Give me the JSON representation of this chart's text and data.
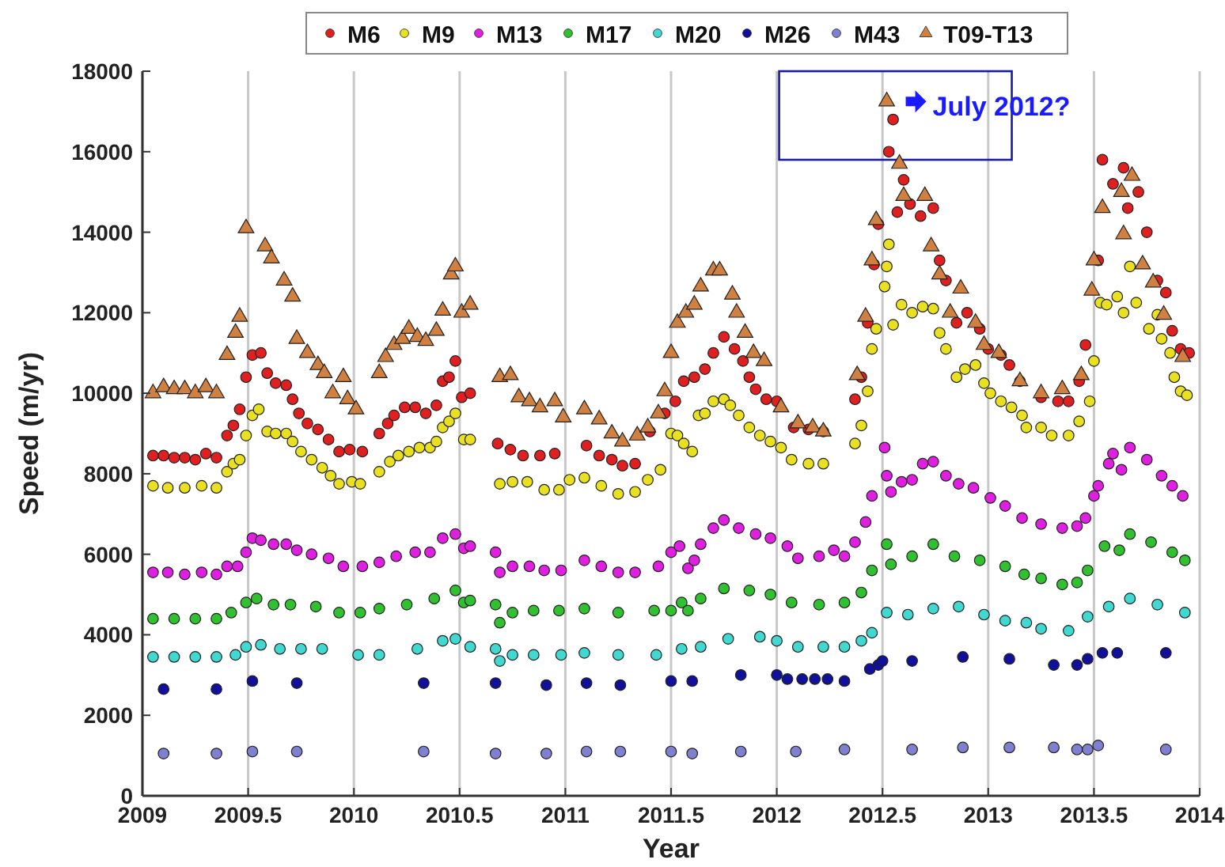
{
  "chart_data": {
    "type": "scatter",
    "xlabel": "Year",
    "ylabel": "Speed (m/yr)",
    "xlim": [
      2009,
      2014
    ],
    "xticks": [
      2009,
      2009.5,
      2010,
      2010.5,
      2011,
      2011.5,
      2012,
      2012.5,
      2013,
      2013.5,
      2014
    ],
    "ylim": [
      0,
      18000
    ],
    "yticks": [
      0,
      2000,
      4000,
      6000,
      8000,
      10000,
      12000,
      14000,
      16000,
      18000
    ],
    "grid": "x",
    "legend": "top",
    "annotations": [
      {
        "text": "July 2012?",
        "x": 2012.55,
        "y": 17250
      }
    ],
    "series": [
      {
        "name": "M6",
        "color": "#e02020",
        "marker": "circle",
        "x": [
          2009.05,
          2009.1,
          2009.15,
          2009.2,
          2009.25,
          2009.3,
          2009.35,
          2009.4,
          2009.43,
          2009.46,
          2009.49,
          2009.52,
          2009.56,
          2009.59,
          2009.63,
          2009.68,
          2009.71,
          2009.74,
          2009.78,
          2009.83,
          2009.88,
          2009.93,
          2009.98,
          2010.04,
          2010.12,
          2010.16,
          2010.19,
          2010.24,
          2010.29,
          2010.34,
          2010.39,
          2010.42,
          2010.45,
          2010.48,
          2010.51,
          2010.55,
          2010.68,
          2010.74,
          2010.8,
          2010.88,
          2010.95,
          2011.1,
          2011.16,
          2011.22,
          2011.27,
          2011.33,
          2011.4,
          2011.47,
          2011.52,
          2011.56,
          2011.61,
          2011.66,
          2011.7,
          2011.75,
          2011.8,
          2011.84,
          2011.87,
          2011.9,
          2011.95,
          2012.0,
          2012.08,
          2012.15,
          2012.22,
          2012.37,
          2012.4,
          2012.43,
          2012.46,
          2012.48,
          2012.53,
          2012.55,
          2012.57,
          2012.6,
          2012.63,
          2012.68,
          2012.74,
          2012.77,
          2012.8,
          2012.85,
          2012.9,
          2012.96,
          2013.0,
          2013.06,
          2013.1,
          2013.15,
          2013.25,
          2013.33,
          2013.38,
          2013.43,
          2013.46,
          2013.52,
          2013.54,
          2013.59,
          2013.64,
          2013.66,
          2013.71,
          2013.75,
          2013.8,
          2013.84,
          2013.87,
          2013.91,
          2013.95
        ],
        "values": [
          8450,
          8450,
          8400,
          8400,
          8350,
          8500,
          8400,
          8950,
          9200,
          9600,
          10400,
          10950,
          11000,
          10500,
          10250,
          10200,
          9850,
          9500,
          9250,
          9100,
          8850,
          8550,
          8600,
          8550,
          9000,
          9250,
          9450,
          9650,
          9650,
          9500,
          9700,
          10300,
          10400,
          10800,
          9900,
          10000,
          8750,
          8600,
          8450,
          8450,
          8500,
          8700,
          8450,
          8350,
          8200,
          8250,
          9050,
          9500,
          9800,
          10300,
          10400,
          10600,
          11000,
          11400,
          11100,
          10800,
          10400,
          10100,
          9850,
          9800,
          9150,
          9100,
          9050,
          9850,
          10400,
          11750,
          13200,
          14200,
          16000,
          16800,
          14500,
          15300,
          14700,
          14400,
          14600,
          13300,
          12800,
          11750,
          12000,
          11600,
          11100,
          10950,
          10700,
          10300,
          9900,
          9800,
          9800,
          10300,
          11200,
          13300,
          15800,
          15200,
          15600,
          14600,
          15000,
          14000,
          12800,
          12500,
          11550,
          11100,
          11000
        ]
      },
      {
        "name": "M9",
        "color": "#e8e020",
        "marker": "circle",
        "x": [
          2009.05,
          2009.12,
          2009.2,
          2009.28,
          2009.35,
          2009.4,
          2009.43,
          2009.46,
          2009.49,
          2009.52,
          2009.55,
          2009.59,
          2009.63,
          2009.68,
          2009.71,
          2009.75,
          2009.8,
          2009.85,
          2009.89,
          2009.93,
          2009.99,
          2010.03,
          2010.12,
          2010.17,
          2010.21,
          2010.26,
          2010.31,
          2010.36,
          2010.39,
          2010.42,
          2010.45,
          2010.48,
          2010.52,
          2010.55,
          2010.69,
          2010.75,
          2010.82,
          2010.9,
          2010.97,
          2011.02,
          2011.09,
          2011.17,
          2011.25,
          2011.33,
          2011.39,
          2011.45,
          2011.5,
          2011.53,
          2011.56,
          2011.6,
          2011.63,
          2011.66,
          2011.7,
          2011.75,
          2011.78,
          2011.82,
          2011.87,
          2011.92,
          2011.97,
          2012.02,
          2012.07,
          2012.15,
          2012.22,
          2012.37,
          2012.4,
          2012.43,
          2012.45,
          2012.47,
          2012.51,
          2012.52,
          2012.53,
          2012.55,
          2012.59,
          2012.64,
          2012.69,
          2012.74,
          2012.77,
          2012.8,
          2012.85,
          2012.89,
          2012.94,
          2012.98,
          2013.01,
          2013.06,
          2013.11,
          2013.16,
          2013.18,
          2013.25,
          2013.3,
          2013.38,
          2013.43,
          2013.48,
          2013.5,
          2013.53,
          2013.56,
          2013.61,
          2013.64,
          2013.67,
          2013.7,
          2013.76,
          2013.8,
          2013.82,
          2013.86,
          2013.88,
          2013.91,
          2013.94
        ],
        "values": [
          7700,
          7650,
          7650,
          7700,
          7650,
          8050,
          8250,
          8350,
          8950,
          9450,
          9600,
          9050,
          9000,
          9000,
          8800,
          8550,
          8350,
          8150,
          7950,
          7750,
          7800,
          7750,
          8050,
          8300,
          8450,
          8550,
          8650,
          8650,
          8800,
          9150,
          9300,
          9500,
          8850,
          8850,
          7750,
          7800,
          7800,
          7600,
          7600,
          7850,
          7900,
          7700,
          7500,
          7550,
          7850,
          8100,
          9000,
          8950,
          8750,
          8550,
          9450,
          9500,
          9800,
          9850,
          9700,
          9450,
          9150,
          8950,
          8800,
          8650,
          8350,
          8250,
          8250,
          8750,
          9200,
          10050,
          11100,
          11600,
          12650,
          13150,
          13700,
          11700,
          12200,
          12000,
          12150,
          12100,
          11500,
          11100,
          10400,
          10600,
          10700,
          10250,
          10000,
          9800,
          9650,
          9450,
          9150,
          9150,
          8950,
          8950,
          9300,
          9800,
          10800,
          12250,
          12200,
          12400,
          12000,
          13150,
          12250,
          11600,
          11950,
          11350,
          11000,
          10400,
          10050,
          9950
        ]
      },
      {
        "name": "M13",
        "color": "#e020e0",
        "marker": "circle",
        "x": [
          2009.05,
          2009.12,
          2009.2,
          2009.28,
          2009.35,
          2009.4,
          2009.45,
          2009.49,
          2009.52,
          2009.56,
          2009.62,
          2009.68,
          2009.73,
          2009.8,
          2009.88,
          2009.95,
          2010.04,
          2010.12,
          2010.2,
          2010.29,
          2010.36,
          2010.42,
          2010.48,
          2010.52,
          2010.55,
          2010.67,
          2010.69,
          2010.75,
          2010.83,
          2010.9,
          2010.98,
          2011.09,
          2011.17,
          2011.25,
          2011.33,
          2011.44,
          2011.5,
          2011.54,
          2011.58,
          2011.61,
          2011.64,
          2011.7,
          2011.75,
          2011.82,
          2011.9,
          2011.97,
          2012.05,
          2012.1,
          2012.2,
          2012.27,
          2012.32,
          2012.37,
          2012.42,
          2012.45,
          2012.51,
          2012.52,
          2012.54,
          2012.59,
          2012.64,
          2012.69,
          2012.74,
          2012.8,
          2012.86,
          2012.93,
          2013.01,
          2013.08,
          2013.16,
          2013.25,
          2013.35,
          2013.42,
          2013.46,
          2013.5,
          2013.52,
          2013.57,
          2013.59,
          2013.63,
          2013.67,
          2013.75,
          2013.82,
          2013.87,
          2013.92
        ],
        "values": [
          5550,
          5550,
          5500,
          5550,
          5500,
          5700,
          5700,
          6050,
          6400,
          6350,
          6250,
          6250,
          6100,
          6000,
          5900,
          5700,
          5700,
          5800,
          5950,
          6050,
          6050,
          6400,
          6500,
          6150,
          6200,
          6050,
          5550,
          5700,
          5700,
          5600,
          5600,
          5850,
          5700,
          5550,
          5550,
          5700,
          6050,
          6200,
          5650,
          5850,
          6250,
          6650,
          6850,
          6650,
          6500,
          6400,
          6200,
          5900,
          5950,
          6100,
          5950,
          6300,
          6800,
          7450,
          8650,
          7950,
          7550,
          7800,
          7850,
          8250,
          8300,
          7950,
          7750,
          7650,
          7400,
          7200,
          6900,
          6750,
          6650,
          6700,
          6900,
          7450,
          7700,
          8250,
          8500,
          8100,
          8650,
          8350,
          7950,
          7700,
          7450
        ]
      },
      {
        "name": "M17",
        "color": "#30c030",
        "marker": "circle",
        "x": [
          2009.05,
          2009.15,
          2009.25,
          2009.35,
          2009.42,
          2009.49,
          2009.54,
          2009.62,
          2009.7,
          2009.82,
          2009.93,
          2010.03,
          2010.12,
          2010.25,
          2010.38,
          2010.48,
          2010.52,
          2010.55,
          2010.67,
          2010.69,
          2010.75,
          2010.85,
          2010.97,
          2011.09,
          2011.25,
          2011.42,
          2011.5,
          2011.55,
          2011.58,
          2011.64,
          2011.75,
          2011.87,
          2011.97,
          2012.07,
          2012.2,
          2012.32,
          2012.4,
          2012.45,
          2012.52,
          2012.54,
          2012.64,
          2012.74,
          2012.84,
          2012.96,
          2013.08,
          2013.17,
          2013.25,
          2013.35,
          2013.42,
          2013.47,
          2013.55,
          2013.62,
          2013.67,
          2013.77,
          2013.87,
          2013.93
        ],
        "values": [
          4400,
          4400,
          4400,
          4400,
          4550,
          4800,
          4900,
          4750,
          4750,
          4700,
          4550,
          4550,
          4650,
          4750,
          4900,
          5100,
          4800,
          4850,
          4750,
          4300,
          4550,
          4600,
          4600,
          4650,
          4550,
          4600,
          4600,
          4800,
          4600,
          4900,
          5150,
          5100,
          5000,
          4800,
          4750,
          4800,
          5050,
          5600,
          6250,
          5750,
          5950,
          6250,
          5950,
          5850,
          5700,
          5500,
          5400,
          5250,
          5300,
          5600,
          6200,
          6100,
          6500,
          6300,
          6050,
          5850
        ]
      },
      {
        "name": "M20",
        "color": "#40d8d0",
        "marker": "circle",
        "x": [
          2009.05,
          2009.15,
          2009.25,
          2009.35,
          2009.44,
          2009.49,
          2009.56,
          2009.65,
          2009.75,
          2009.85,
          2010.02,
          2010.12,
          2010.3,
          2010.42,
          2010.48,
          2010.55,
          2010.67,
          2010.69,
          2010.75,
          2010.85,
          2010.98,
          2011.09,
          2011.25,
          2011.43,
          2011.55,
          2011.64,
          2011.77,
          2011.92,
          2012.0,
          2012.1,
          2012.22,
          2012.32,
          2012.4,
          2012.45,
          2012.52,
          2012.62,
          2012.74,
          2012.86,
          2012.98,
          2013.08,
          2013.18,
          2013.25,
          2013.38,
          2013.47,
          2013.57,
          2013.67,
          2013.8,
          2013.93
        ],
        "values": [
          3450,
          3450,
          3450,
          3450,
          3500,
          3700,
          3750,
          3650,
          3650,
          3650,
          3500,
          3500,
          3650,
          3850,
          3900,
          3700,
          3650,
          3350,
          3500,
          3500,
          3500,
          3550,
          3500,
          3500,
          3650,
          3700,
          3900,
          3950,
          3850,
          3700,
          3700,
          3700,
          3850,
          4050,
          4550,
          4500,
          4650,
          4700,
          4500,
          4350,
          4300,
          4150,
          4100,
          4450,
          4700,
          4900,
          4750,
          4550
        ]
      },
      {
        "name": "M26",
        "color": "#10109a",
        "marker": "circle",
        "x": [
          2009.1,
          2009.35,
          2009.52,
          2009.73,
          2010.33,
          2010.67,
          2010.91,
          2011.1,
          2011.26,
          2011.5,
          2011.6,
          2011.83,
          2012.0,
          2012.05,
          2012.12,
          2012.18,
          2012.24,
          2012.32,
          2012.44,
          2012.48,
          2012.5,
          2012.64,
          2012.88,
          2013.1,
          2013.31,
          2013.42,
          2013.47,
          2013.54,
          2013.61,
          2013.84
        ],
        "values": [
          2650,
          2650,
          2850,
          2800,
          2800,
          2800,
          2750,
          2800,
          2750,
          2850,
          2850,
          3000,
          3000,
          2900,
          2900,
          2900,
          2900,
          2850,
          3150,
          3250,
          3350,
          3350,
          3450,
          3400,
          3250,
          3250,
          3400,
          3550,
          3550,
          3550
        ]
      },
      {
        "name": "M43",
        "color": "#8080d0",
        "marker": "circle",
        "x": [
          2009.1,
          2009.35,
          2009.52,
          2009.73,
          2010.33,
          2010.67,
          2010.91,
          2011.1,
          2011.26,
          2011.5,
          2011.6,
          2011.83,
          2012.09,
          2012.32,
          2012.64,
          2012.88,
          2013.1,
          2013.31,
          2013.42,
          2013.47,
          2013.52,
          2013.84
        ],
        "values": [
          1050,
          1050,
          1100,
          1100,
          1100,
          1050,
          1050,
          1100,
          1100,
          1100,
          1050,
          1100,
          1100,
          1150,
          1150,
          1200,
          1200,
          1200,
          1150,
          1150,
          1250,
          1150
        ]
      },
      {
        "name": "T09-T13",
        "color": "#d08040",
        "marker": "triangle",
        "x": [
          2009.05,
          2009.1,
          2009.15,
          2009.2,
          2009.25,
          2009.3,
          2009.35,
          2009.4,
          2009.44,
          2009.46,
          2009.49,
          2009.58,
          2009.61,
          2009.67,
          2009.71,
          2009.73,
          2009.78,
          2009.83,
          2009.86,
          2009.9,
          2009.95,
          2009.97,
          2010.01,
          2010.12,
          2010.15,
          2010.19,
          2010.23,
          2010.26,
          2010.3,
          2010.34,
          2010.39,
          2010.42,
          2010.46,
          2010.48,
          2010.51,
          2010.55,
          2010.69,
          2010.74,
          2010.78,
          2010.83,
          2010.88,
          2010.95,
          2010.99,
          2011.09,
          2011.16,
          2011.22,
          2011.27,
          2011.34,
          2011.39,
          2011.44,
          2011.47,
          2011.5,
          2011.53,
          2011.57,
          2011.61,
          2011.64,
          2011.7,
          2011.73,
          2011.79,
          2011.81,
          2011.85,
          2011.89,
          2011.94,
          2012.02,
          2012.1,
          2012.17,
          2012.22,
          2012.38,
          2012.42,
          2012.45,
          2012.47,
          2012.52,
          2012.58,
          2012.6,
          2012.7,
          2012.73,
          2012.77,
          2012.82,
          2012.87,
          2012.94,
          2012.98,
          2013.05,
          2013.15,
          2013.25,
          2013.35,
          2013.44,
          2013.49,
          2013.5,
          2013.54,
          2013.63,
          2013.64,
          2013.68,
          2013.73,
          2013.78,
          2013.83,
          2013.92
        ],
        "values": [
          10000,
          10150,
          10100,
          10100,
          10000,
          10150,
          10000,
          10950,
          11500,
          11900,
          14100,
          13650,
          13350,
          12800,
          12400,
          11350,
          11000,
          10700,
          10500,
          10000,
          10400,
          9850,
          9600,
          10500,
          10900,
          11200,
          11350,
          11600,
          11400,
          11300,
          11550,
          12050,
          12950,
          13150,
          12000,
          12200,
          10400,
          10450,
          9900,
          9800,
          9650,
          9800,
          9400,
          9600,
          9350,
          9000,
          8800,
          8950,
          9150,
          9500,
          10050,
          11000,
          11750,
          12000,
          12200,
          12650,
          13050,
          13050,
          12450,
          12000,
          11500,
          11000,
          10800,
          9650,
          9250,
          9150,
          9050,
          10450,
          11900,
          13300,
          14300,
          17250,
          15700,
          14900,
          14900,
          13650,
          12950,
          12000,
          12600,
          11750,
          11200,
          11000,
          10300,
          10000,
          10100,
          10450,
          12550,
          13300,
          14600,
          15000,
          13950,
          15400,
          13200,
          12750,
          11950,
          10900
        ]
      }
    ]
  }
}
